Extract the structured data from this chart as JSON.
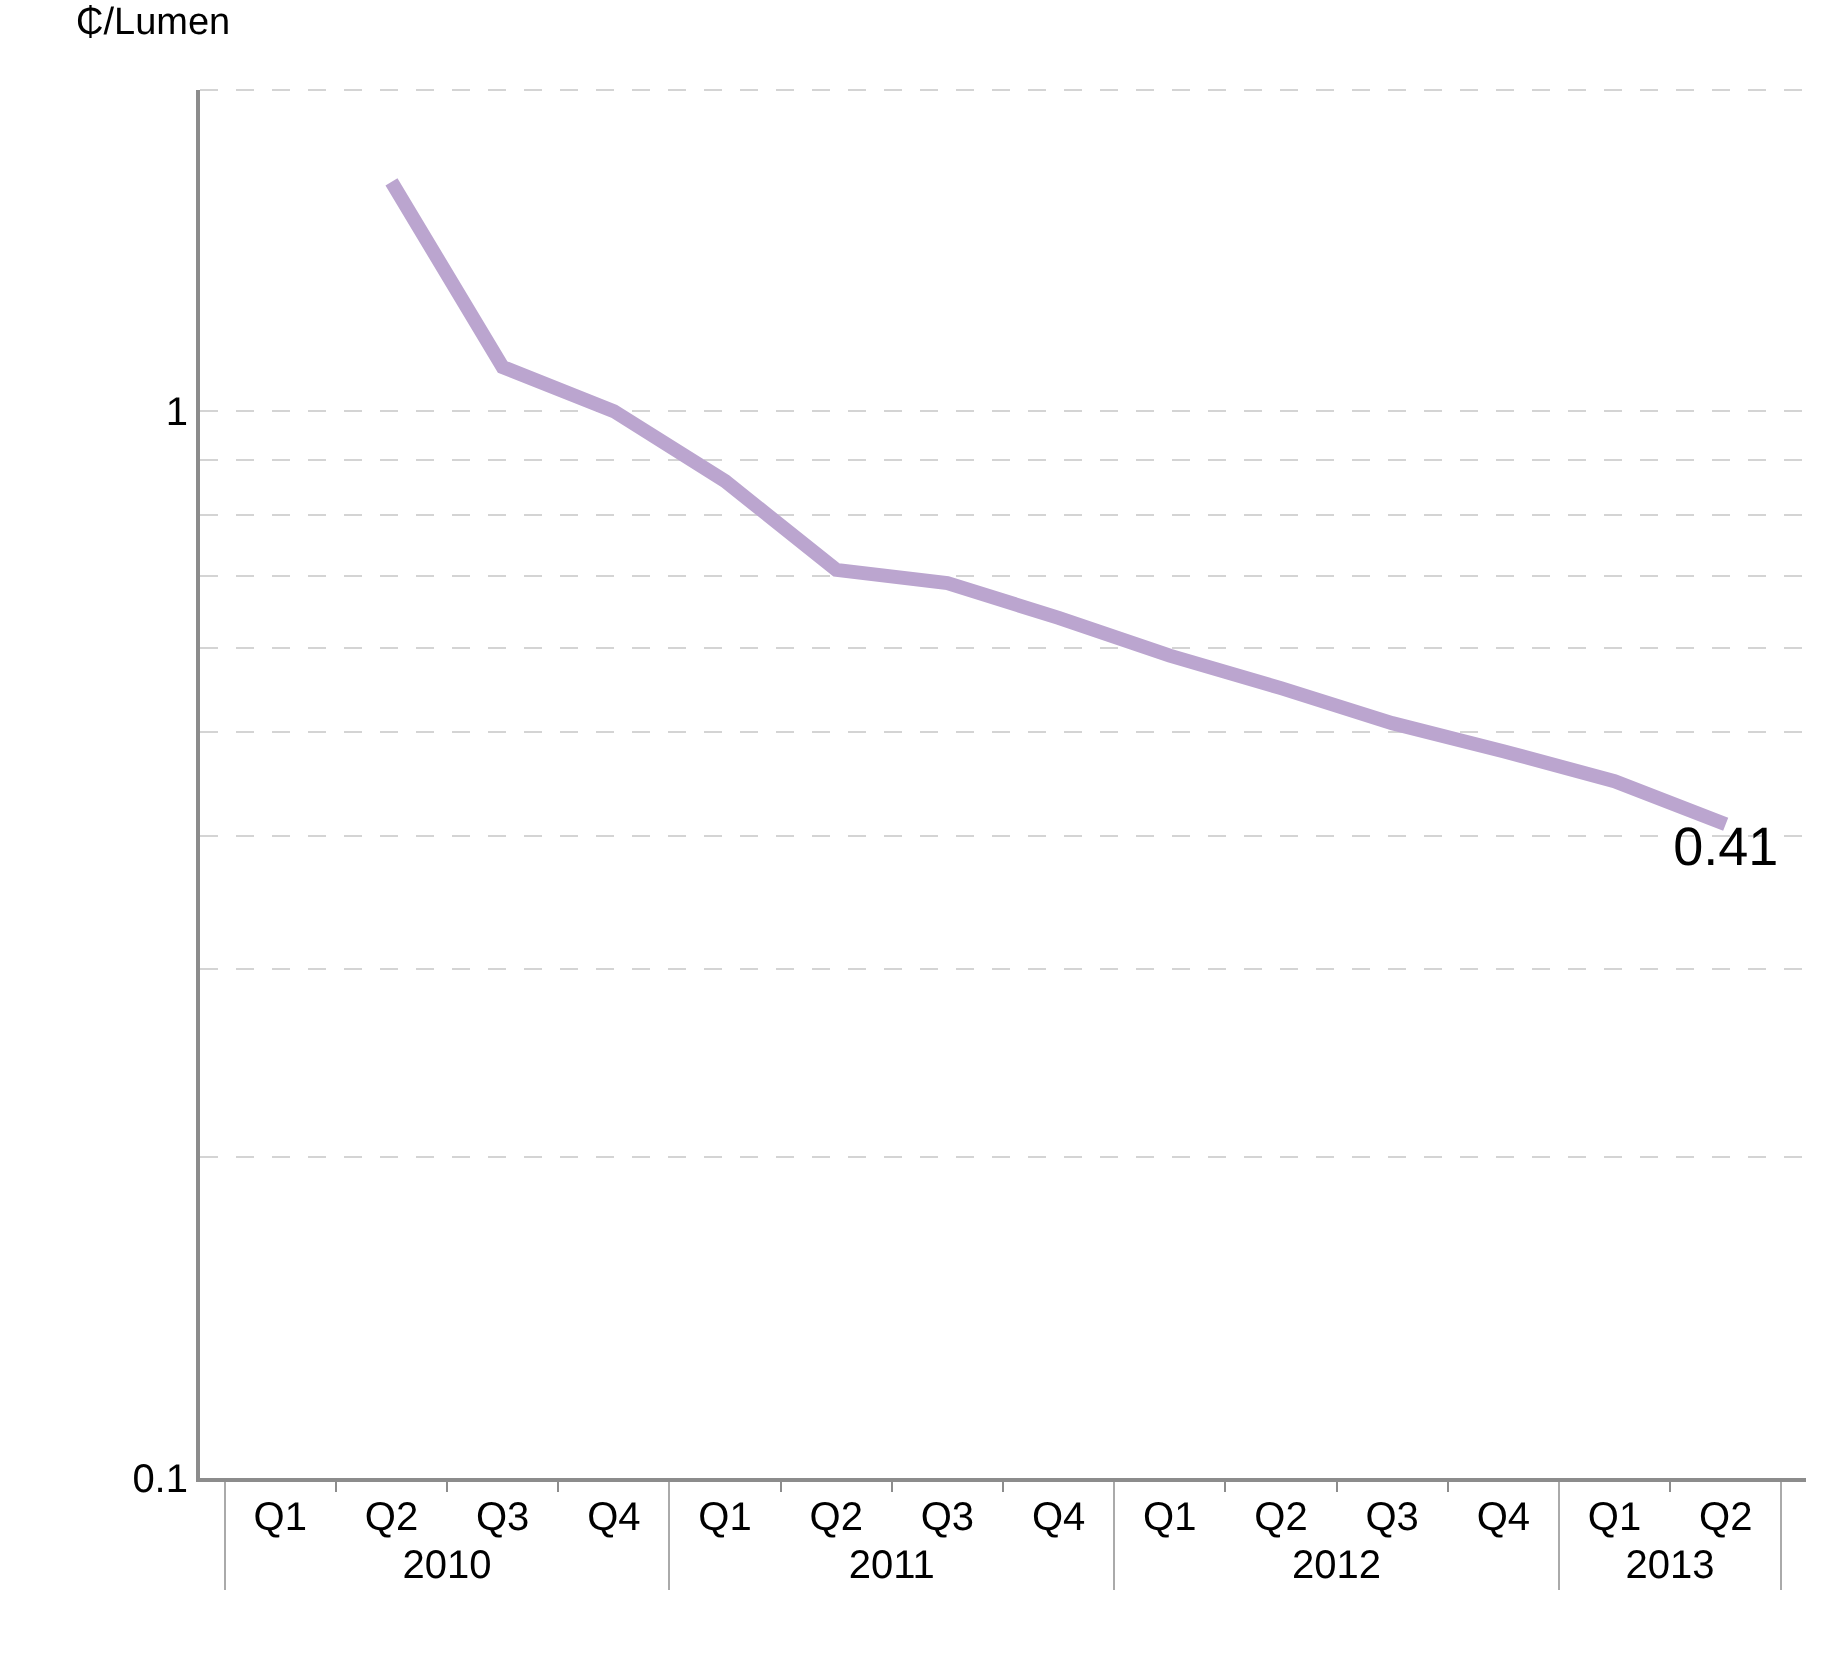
{
  "chart_data": {
    "type": "line",
    "ylabel": "₵/Lumen",
    "log": "y",
    "categories": [
      "Q1",
      "Q2",
      "Q3",
      "Q4",
      "Q1",
      "Q2",
      "Q3",
      "Q4",
      "Q1",
      "Q2",
      "Q3",
      "Q4",
      "Q1",
      "Q2"
    ],
    "annotations": [
      "2010",
      "2011",
      "2012",
      "2013"
    ],
    "series": [
      {
        "color": "#bba5cf",
        "values": [
          null,
          1.64,
          1.1,
          1.0,
          0.86,
          0.71,
          0.69,
          0.64,
          0.59,
          0.55,
          0.51,
          0.48,
          0.45,
          0.41
        ],
        "value_labels": [
          null,
          null,
          null,
          null,
          null,
          null,
          null,
          null,
          null,
          null,
          null,
          null,
          null,
          "0.41"
        ]
      }
    ],
    "ylim": [
      0.1,
      2
    ],
    "yticks": [
      0.1,
      1,
      {
        "value": 0.2,
        "label": null
      },
      {
        "value": 0.3,
        "label": null
      },
      {
        "value": 0.4,
        "label": null
      },
      {
        "value": 0.5,
        "label": null
      },
      {
        "value": 0.6,
        "label": null
      },
      {
        "value": 0.7,
        "label": null
      },
      {
        "value": 0.8,
        "label": null
      },
      {
        "value": 0.9,
        "label": null
      },
      {
        "value": 2,
        "label": null
      }
    ],
    "grid": "y",
    "marker": "none",
    "line_style": "solid"
  }
}
